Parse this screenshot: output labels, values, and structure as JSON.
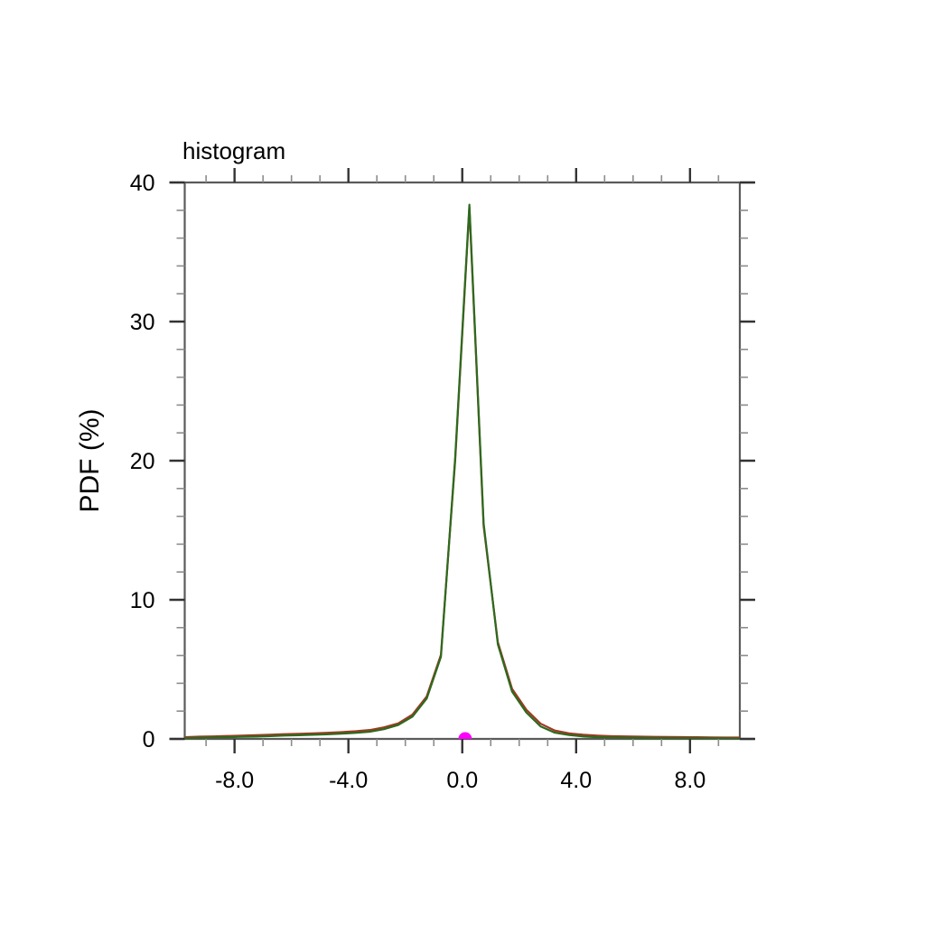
{
  "chart_data": {
    "type": "line",
    "title": "histogram",
    "xlabel": "",
    "ylabel": "PDF (%)",
    "xlim": [
      -9.75,
      9.75
    ],
    "ylim": [
      0,
      40
    ],
    "grid": false,
    "legend": "none",
    "tick_style": "outward-all-sides",
    "x_major_ticks": [
      -8,
      -4,
      0,
      4,
      8
    ],
    "x_major_tick_labels": [
      "-8.0",
      "-4.0",
      "0.0",
      "4.0",
      "8.0"
    ],
    "x_minor_tick_step": 1.0,
    "y_major_ticks": [
      0,
      10,
      20,
      30,
      40
    ],
    "y_major_tick_labels": [
      "0",
      "10",
      "20",
      "30",
      "40"
    ],
    "y_minor_tick_step": 2.0,
    "x": [
      -9.75,
      -9.25,
      -8.75,
      -8.25,
      -7.75,
      -7.25,
      -6.75,
      -6.25,
      -5.75,
      -5.25,
      -4.75,
      -4.25,
      -3.75,
      -3.25,
      -2.75,
      -2.25,
      -1.75,
      -1.25,
      -0.75,
      -0.25,
      0.25,
      0.75,
      1.25,
      1.75,
      2.25,
      2.75,
      3.25,
      3.75,
      4.25,
      4.75,
      5.25,
      5.75,
      6.25,
      6.75,
      7.25,
      7.75,
      8.25,
      8.75,
      9.25,
      9.75
    ],
    "series": [
      {
        "name": "pdf-curve-red",
        "color": "#9e3a22",
        "line_width": 2.2,
        "values": [
          0.12,
          0.16,
          0.18,
          0.21,
          0.24,
          0.27,
          0.3,
          0.34,
          0.37,
          0.4,
          0.44,
          0.49,
          0.55,
          0.64,
          0.83,
          1.12,
          1.75,
          3.05,
          6.05,
          20.0,
          38.2,
          15.3,
          6.95,
          3.6,
          2.1,
          1.1,
          0.6,
          0.4,
          0.3,
          0.24,
          0.2,
          0.18,
          0.16,
          0.15,
          0.14,
          0.13,
          0.12,
          0.11,
          0.1,
          0.1
        ]
      },
      {
        "name": "pdf-curve-green",
        "color": "#2d6a1e",
        "line_width": 2.2,
        "values": [
          0.05,
          0.08,
          0.1,
          0.12,
          0.15,
          0.17,
          0.2,
          0.24,
          0.27,
          0.3,
          0.33,
          0.38,
          0.44,
          0.52,
          0.7,
          1.0,
          1.6,
          2.9,
          5.9,
          20.2,
          38.4,
          15.5,
          6.8,
          3.4,
          1.9,
          0.9,
          0.45,
          0.28,
          0.18,
          0.12,
          0.1,
          0.09,
          0.08,
          0.07,
          0.06,
          0.05,
          0.05,
          0.04,
          0.04,
          0.03
        ]
      }
    ],
    "peak": {
      "x": 0.25,
      "y": 38.4
    },
    "marker": {
      "name": "mean-marker",
      "x": 0.1,
      "y": 0,
      "color": "#ff00ff",
      "radius_px": 7.5
    },
    "axis_colors": {
      "line": "#5a5a5a",
      "major_tick": "#333333",
      "minor_tick": "#8c8c8c"
    }
  }
}
